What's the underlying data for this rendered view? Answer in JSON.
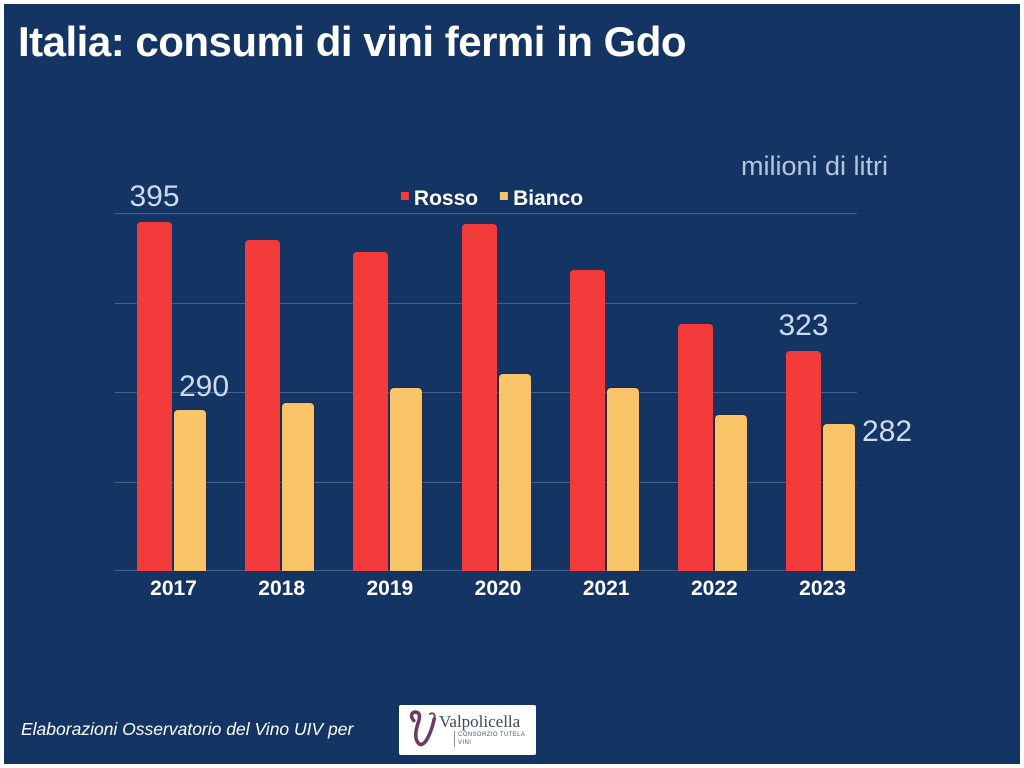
{
  "title": "Italia: consumi di vini fermi in Gdo",
  "unit_label": "milioni di litri",
  "legend": {
    "rosso_label": "Rosso",
    "bianco_label": "Bianco"
  },
  "footer": {
    "credit": "Elaborazioni Osservatorio del Vino UIV per",
    "logo_name": "Valpolicella",
    "logo_subtitle": "CONSORZIO TUTELA VINI"
  },
  "colors": {
    "background": "#143463",
    "rosso": "#f43b3c",
    "bianco": "#f9c368",
    "value_label": "#ccdcee",
    "unit_label_color": "#b5c5da",
    "gridline": "rgba(190,212,238,0.28)",
    "logo_purple": "#6d3a64",
    "logo_text": "#3d4757",
    "frame": "#ffffff"
  },
  "chart_data": {
    "type": "bar",
    "title": "Italia: consumi di vini fermi in Gdo",
    "ylabel": "milioni di litri",
    "categories": [
      "2017",
      "2018",
      "2019",
      "2020",
      "2021",
      "2022",
      "2023"
    ],
    "series": [
      {
        "name": "Rosso",
        "color": "#f43b3c",
        "values": [
          395,
          385,
          378,
          394,
          368,
          338,
          323
        ]
      },
      {
        "name": "Bianco",
        "color": "#f9c368",
        "values": [
          290,
          294,
          302,
          310,
          302,
          287,
          282
        ]
      }
    ],
    "ylim": [
      200,
      400
    ],
    "gridline_values": [
      400,
      350,
      300,
      250,
      200
    ],
    "grid": "horizontal-only, no tick labels",
    "legend_position": "top-center",
    "annotations": [
      {
        "series": "Rosso",
        "category": "2017",
        "text": "395",
        "placement": "above-center"
      },
      {
        "series": "Bianco",
        "category": "2017",
        "text": "290",
        "placement": "above-start"
      },
      {
        "series": "Rosso",
        "category": "2023",
        "text": "323",
        "placement": "above-center"
      },
      {
        "series": "Bianco",
        "category": "2023",
        "text": "282",
        "placement": "side-right"
      }
    ]
  }
}
